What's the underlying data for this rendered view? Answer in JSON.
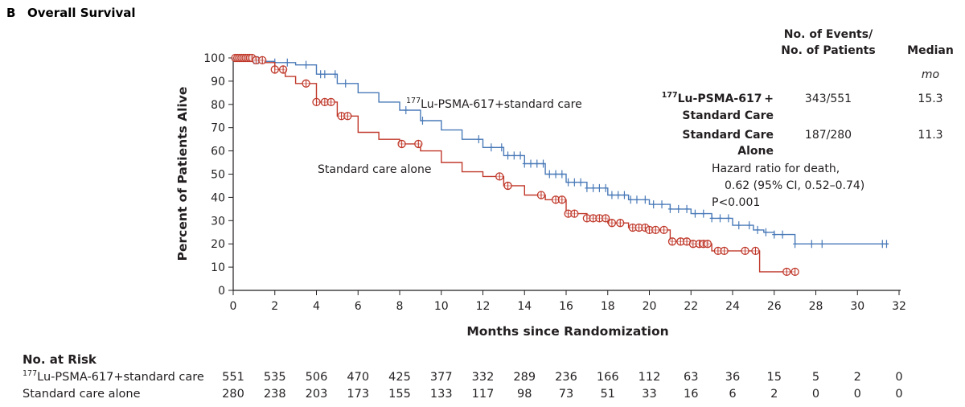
{
  "panel_label": "B",
  "chart_data": {
    "type": "line",
    "subtype": "kaplan-meier",
    "title": "Overall Survival",
    "xlabel": "Months since Randomization",
    "ylabel": "Percent of Patients Alive",
    "xlim": [
      0,
      32
    ],
    "ylim": [
      0,
      100
    ],
    "xticks": [
      0,
      2,
      4,
      6,
      8,
      10,
      12,
      14,
      16,
      18,
      20,
      22,
      24,
      26,
      28,
      30,
      32
    ],
    "yticks": [
      0,
      10,
      20,
      30,
      40,
      50,
      60,
      70,
      80,
      90,
      100
    ],
    "grid": false,
    "colors": {
      "lu": "#4a7ab8",
      "std": "#c0392b"
    },
    "series": [
      {
        "name": "Lu-PSMA-617+standard care",
        "name_sup": "177",
        "name_rest": "Lu-PSMA-617+standard care",
        "color_key": "lu",
        "censor_marker": "plus",
        "x": [
          0,
          0.5,
          1,
          1.5,
          2,
          3,
          4,
          5,
          6,
          7,
          8,
          9,
          10,
          11,
          12,
          13,
          14,
          15,
          16,
          17,
          18,
          19,
          20,
          21,
          22,
          23,
          24,
          25,
          25.5,
          26,
          27,
          28,
          29,
          30,
          31,
          31.5
        ],
        "y": [
          100,
          100,
          99,
          98.5,
          98,
          97,
          93,
          89,
          85,
          81,
          77.5,
          73,
          69,
          65,
          61.5,
          58,
          54.5,
          50,
          46.5,
          44,
          41,
          39,
          37,
          35,
          33,
          31,
          28,
          26,
          25,
          24,
          20,
          20,
          20,
          20,
          20,
          20
        ],
        "censor_x": [
          0.1,
          0.2,
          0.3,
          0.4,
          0.5,
          0.6,
          0.7,
          0.8,
          0.9,
          1.0,
          1.1,
          1.2,
          1.4,
          2.0,
          2.6,
          3.5,
          4.2,
          4.4,
          4.9,
          5.4,
          8.3,
          9.1,
          11.8,
          12.4,
          12.9,
          13.2,
          13.5,
          13.8,
          14.0,
          14.3,
          14.6,
          14.9,
          15.2,
          15.5,
          15.8,
          16.1,
          16.4,
          16.7,
          17.0,
          17.3,
          17.6,
          17.9,
          18.2,
          18.5,
          18.8,
          19.1,
          19.4,
          19.8,
          20.2,
          20.6,
          21.0,
          21.4,
          21.8,
          22.2,
          22.6,
          23.0,
          23.4,
          23.8,
          24.3,
          24.8,
          25.2,
          25.6,
          26.0,
          26.4,
          27.0,
          27.8,
          28.3,
          31.2,
          31.4
        ]
      },
      {
        "name": "Standard care alone",
        "color_key": "std",
        "censor_marker": "circle",
        "x": [
          0,
          1,
          1.5,
          2,
          2.5,
          3,
          4,
          5,
          6,
          7,
          8,
          9,
          10,
          11,
          12,
          13,
          14,
          15,
          16,
          17,
          18,
          19,
          20,
          21,
          22,
          23,
          24,
          25,
          25.3,
          26,
          27
        ],
        "y": [
          100,
          99,
          98,
          95,
          92,
          89,
          81,
          75,
          68,
          65,
          63,
          60,
          55,
          51,
          49,
          45,
          41,
          39,
          33,
          31,
          29,
          27,
          26,
          21,
          20,
          17,
          17,
          17,
          8,
          8,
          8
        ],
        "censor_x": [
          0.1,
          0.2,
          0.3,
          0.4,
          0.5,
          0.6,
          0.7,
          0.8,
          0.9,
          1.1,
          1.4,
          2.0,
          2.4,
          3.5,
          4.0,
          4.4,
          4.7,
          5.2,
          5.5,
          8.1,
          8.9,
          12.8,
          13.2,
          14.8,
          15.5,
          15.8,
          16.1,
          16.4,
          17.0,
          17.3,
          17.6,
          17.9,
          18.2,
          18.6,
          19.2,
          19.5,
          19.8,
          20.0,
          20.3,
          20.7,
          21.1,
          21.5,
          21.8,
          22.1,
          22.4,
          22.6,
          22.8,
          23.3,
          23.6,
          24.6,
          25.1,
          26.6,
          27.0
        ]
      }
    ]
  },
  "legend": {
    "header_events_line1": "No. of Events/",
    "header_events_line2": "No. of Patients",
    "header_median": "Median",
    "unit_mo": "mo",
    "rows": [
      {
        "label_sup": "177",
        "label_line1": "Lu-PSMA-617 +",
        "label_line2": "Standard Care",
        "events": "343/551",
        "median": "15.3"
      },
      {
        "label_sup": "",
        "label_line1": "Standard Care",
        "label_line2": "Alone",
        "events": "187/280",
        "median": "11.3"
      }
    ],
    "hr_line1": "Hazard ratio for death,",
    "hr_line2": "0.62 (95% CI, 0.52–0.74)",
    "hr_line3": "P<0.001"
  },
  "risk_table": {
    "heading": "No. at Risk",
    "rows": [
      {
        "label_sup": "177",
        "label": "Lu-PSMA-617+standard care",
        "values": [
          "551",
          "535",
          "506",
          "470",
          "425",
          "377",
          "332",
          "289",
          "236",
          "166",
          "112",
          "63",
          "36",
          "15",
          "5",
          "2",
          "0"
        ]
      },
      {
        "label_sup": "",
        "label": "Standard care alone",
        "values": [
          "280",
          "238",
          "203",
          "173",
          "155",
          "133",
          "117",
          "98",
          "73",
          "51",
          "33",
          "16",
          "6",
          "2",
          "0",
          "0",
          "0"
        ]
      }
    ]
  }
}
